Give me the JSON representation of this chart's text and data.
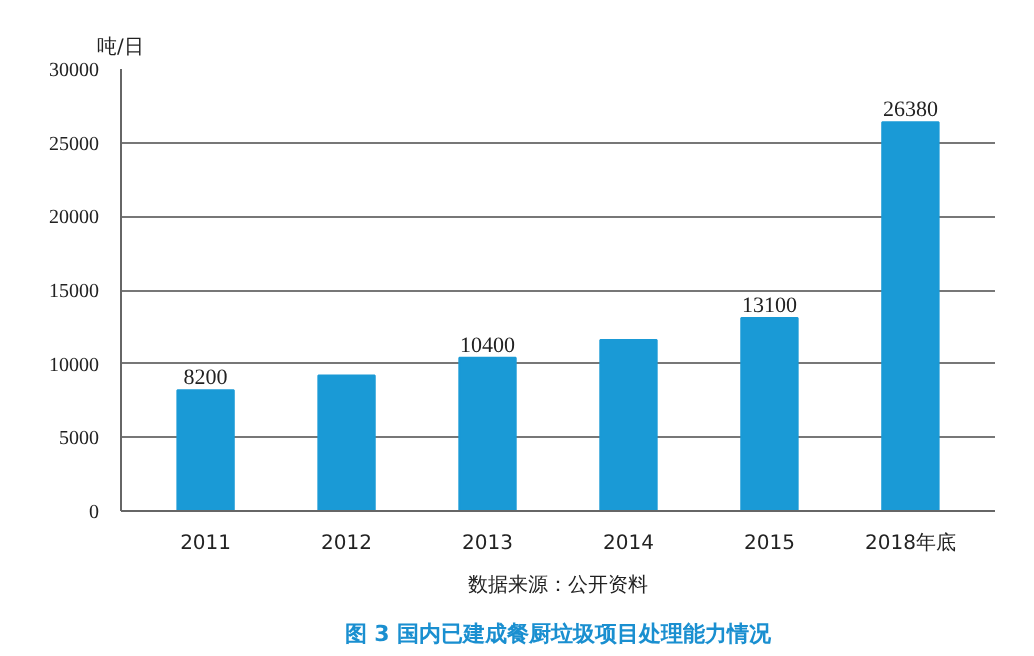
{
  "chart_data": {
    "type": "bar",
    "title": "图 3 国内已建成餐厨垃圾项目处理能力情况",
    "ylabel": "吨/日",
    "categories": [
      "2011",
      "2012",
      "2013",
      "2014",
      "2015",
      "2018年底"
    ],
    "values": [
      8200,
      9200,
      10400,
      11600,
      13100,
      26380
    ],
    "value_labels": [
      "8200",
      null,
      "10400",
      null,
      "13100",
      "26380"
    ],
    "color": "#1a9ad6",
    "ylim": [
      0,
      30000
    ],
    "yticks": [
      0,
      5000,
      10000,
      15000,
      20000,
      25000,
      30000
    ],
    "grid": "y",
    "annotations": [
      "数据来源：公开资料"
    ]
  }
}
